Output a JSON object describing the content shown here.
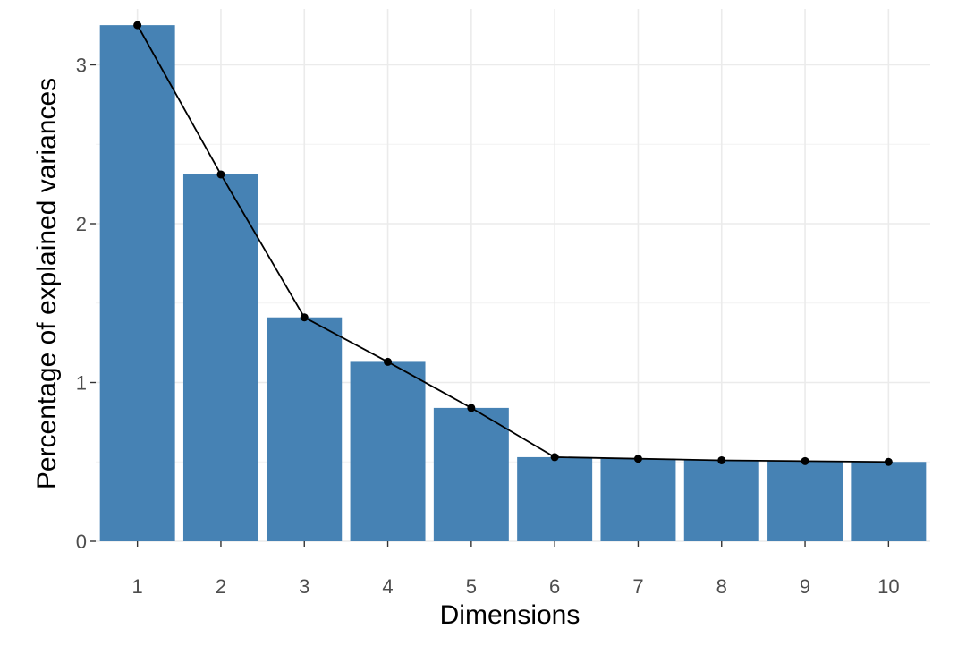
{
  "chart_data": {
    "type": "bar",
    "categories": [
      "1",
      "2",
      "3",
      "4",
      "5",
      "6",
      "7",
      "8",
      "9",
      "10"
    ],
    "values": [
      3.25,
      2.31,
      1.41,
      1.13,
      0.84,
      0.53,
      0.52,
      0.51,
      0.505,
      0.5
    ],
    "xlabel": "Dimensions",
    "ylabel": "Percentage of explained variances",
    "ylim": [
      0,
      3.3
    ],
    "yticks": [
      "0",
      "1",
      "2",
      "3"
    ],
    "line_overlay": true,
    "grid": true,
    "bar_color": "#4682B4",
    "line_color": "#000000"
  }
}
